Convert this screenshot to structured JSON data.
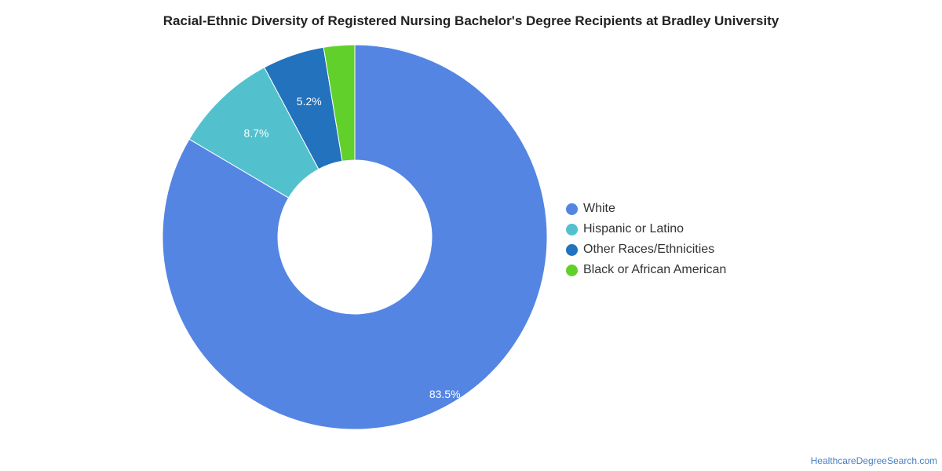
{
  "chart_data": {
    "type": "pie",
    "title": "Racial-Ethnic Diversity of Registered Nursing Bachelor's Degree Recipients at Bradley University",
    "categories": [
      "White",
      "Hispanic or Latino",
      "Other Races/Ethnicities",
      "Black or African American"
    ],
    "values": [
      83.5,
      8.7,
      5.2,
      2.6
    ],
    "data_labels": [
      "83.5%",
      "8.7%",
      "5.2%",
      ""
    ],
    "colors": [
      "#5485e3",
      "#52c1cd",
      "#2272be",
      "#61d02b"
    ],
    "donut": true,
    "legend": "right"
  },
  "footer": {
    "source": "HealthcareDegreeSearch.com"
  }
}
